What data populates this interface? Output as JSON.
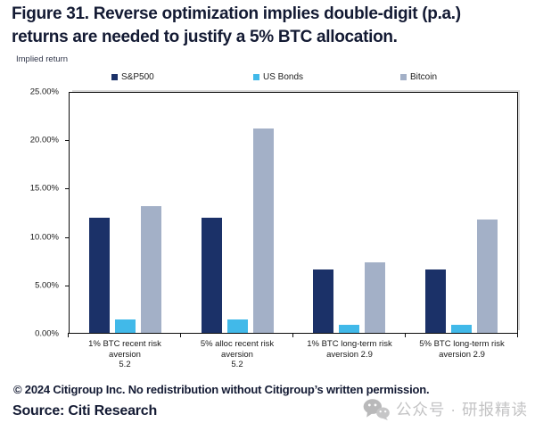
{
  "title": {
    "full": "Figure 31. Reverse optimization implies double-digit (p.a.) returns are needed to justify a 5% BTC allocation.",
    "lines": [
      "Figure 31. Reverse optimization implies double-digit (p.a.)",
      "returns are needed to justify a 5% BTC allocation."
    ]
  },
  "y_unit_label": "Implied return",
  "legend": [
    {
      "label": "S&P500",
      "color": "#1b3168"
    },
    {
      "label": "US Bonds",
      "color": "#41b9e9"
    },
    {
      "label": "Bitcoin",
      "color": "#a3b0c7"
    }
  ],
  "chart_data": {
    "type": "bar",
    "title": "Figure 31. Reverse optimization implies double-digit (p.a.) returns are needed to justify a 5% BTC allocation.",
    "ylabel": "Implied return",
    "xlabel": "",
    "grid": false,
    "legend_position": "top",
    "ylim": [
      0,
      25
    ],
    "yticks": [
      "25.00%",
      "20.00%",
      "15.00%",
      "10.00%",
      "5.00%",
      "0.00%"
    ],
    "categories": [
      [
        "1% BTC recent risk aversion",
        "5.2"
      ],
      [
        "5% alloc recent risk aversion",
        "5.2"
      ],
      [
        "1% BTC long-term risk",
        "aversion 2.9"
      ],
      [
        "5% BTC long-term risk",
        "aversion 2.9"
      ]
    ],
    "series": [
      {
        "name": "S&P500",
        "color": "#1b3168",
        "values": [
          12.0,
          12.0,
          6.6,
          6.6
        ]
      },
      {
        "name": "US Bonds",
        "color": "#41b9e9",
        "values": [
          1.4,
          1.4,
          0.8,
          0.8
        ]
      },
      {
        "name": "Bitcoin",
        "color": "#a3b0c7",
        "values": [
          13.2,
          21.3,
          7.3,
          11.8
        ]
      }
    ]
  },
  "footer": {
    "copyright": "© 2024 Citigroup Inc. No redistribution without Citigroup’s written permission.",
    "source": "Source: Citi Research"
  },
  "watermark": {
    "icon": "wechat-icon",
    "text": "公众号 · 研报精读"
  }
}
